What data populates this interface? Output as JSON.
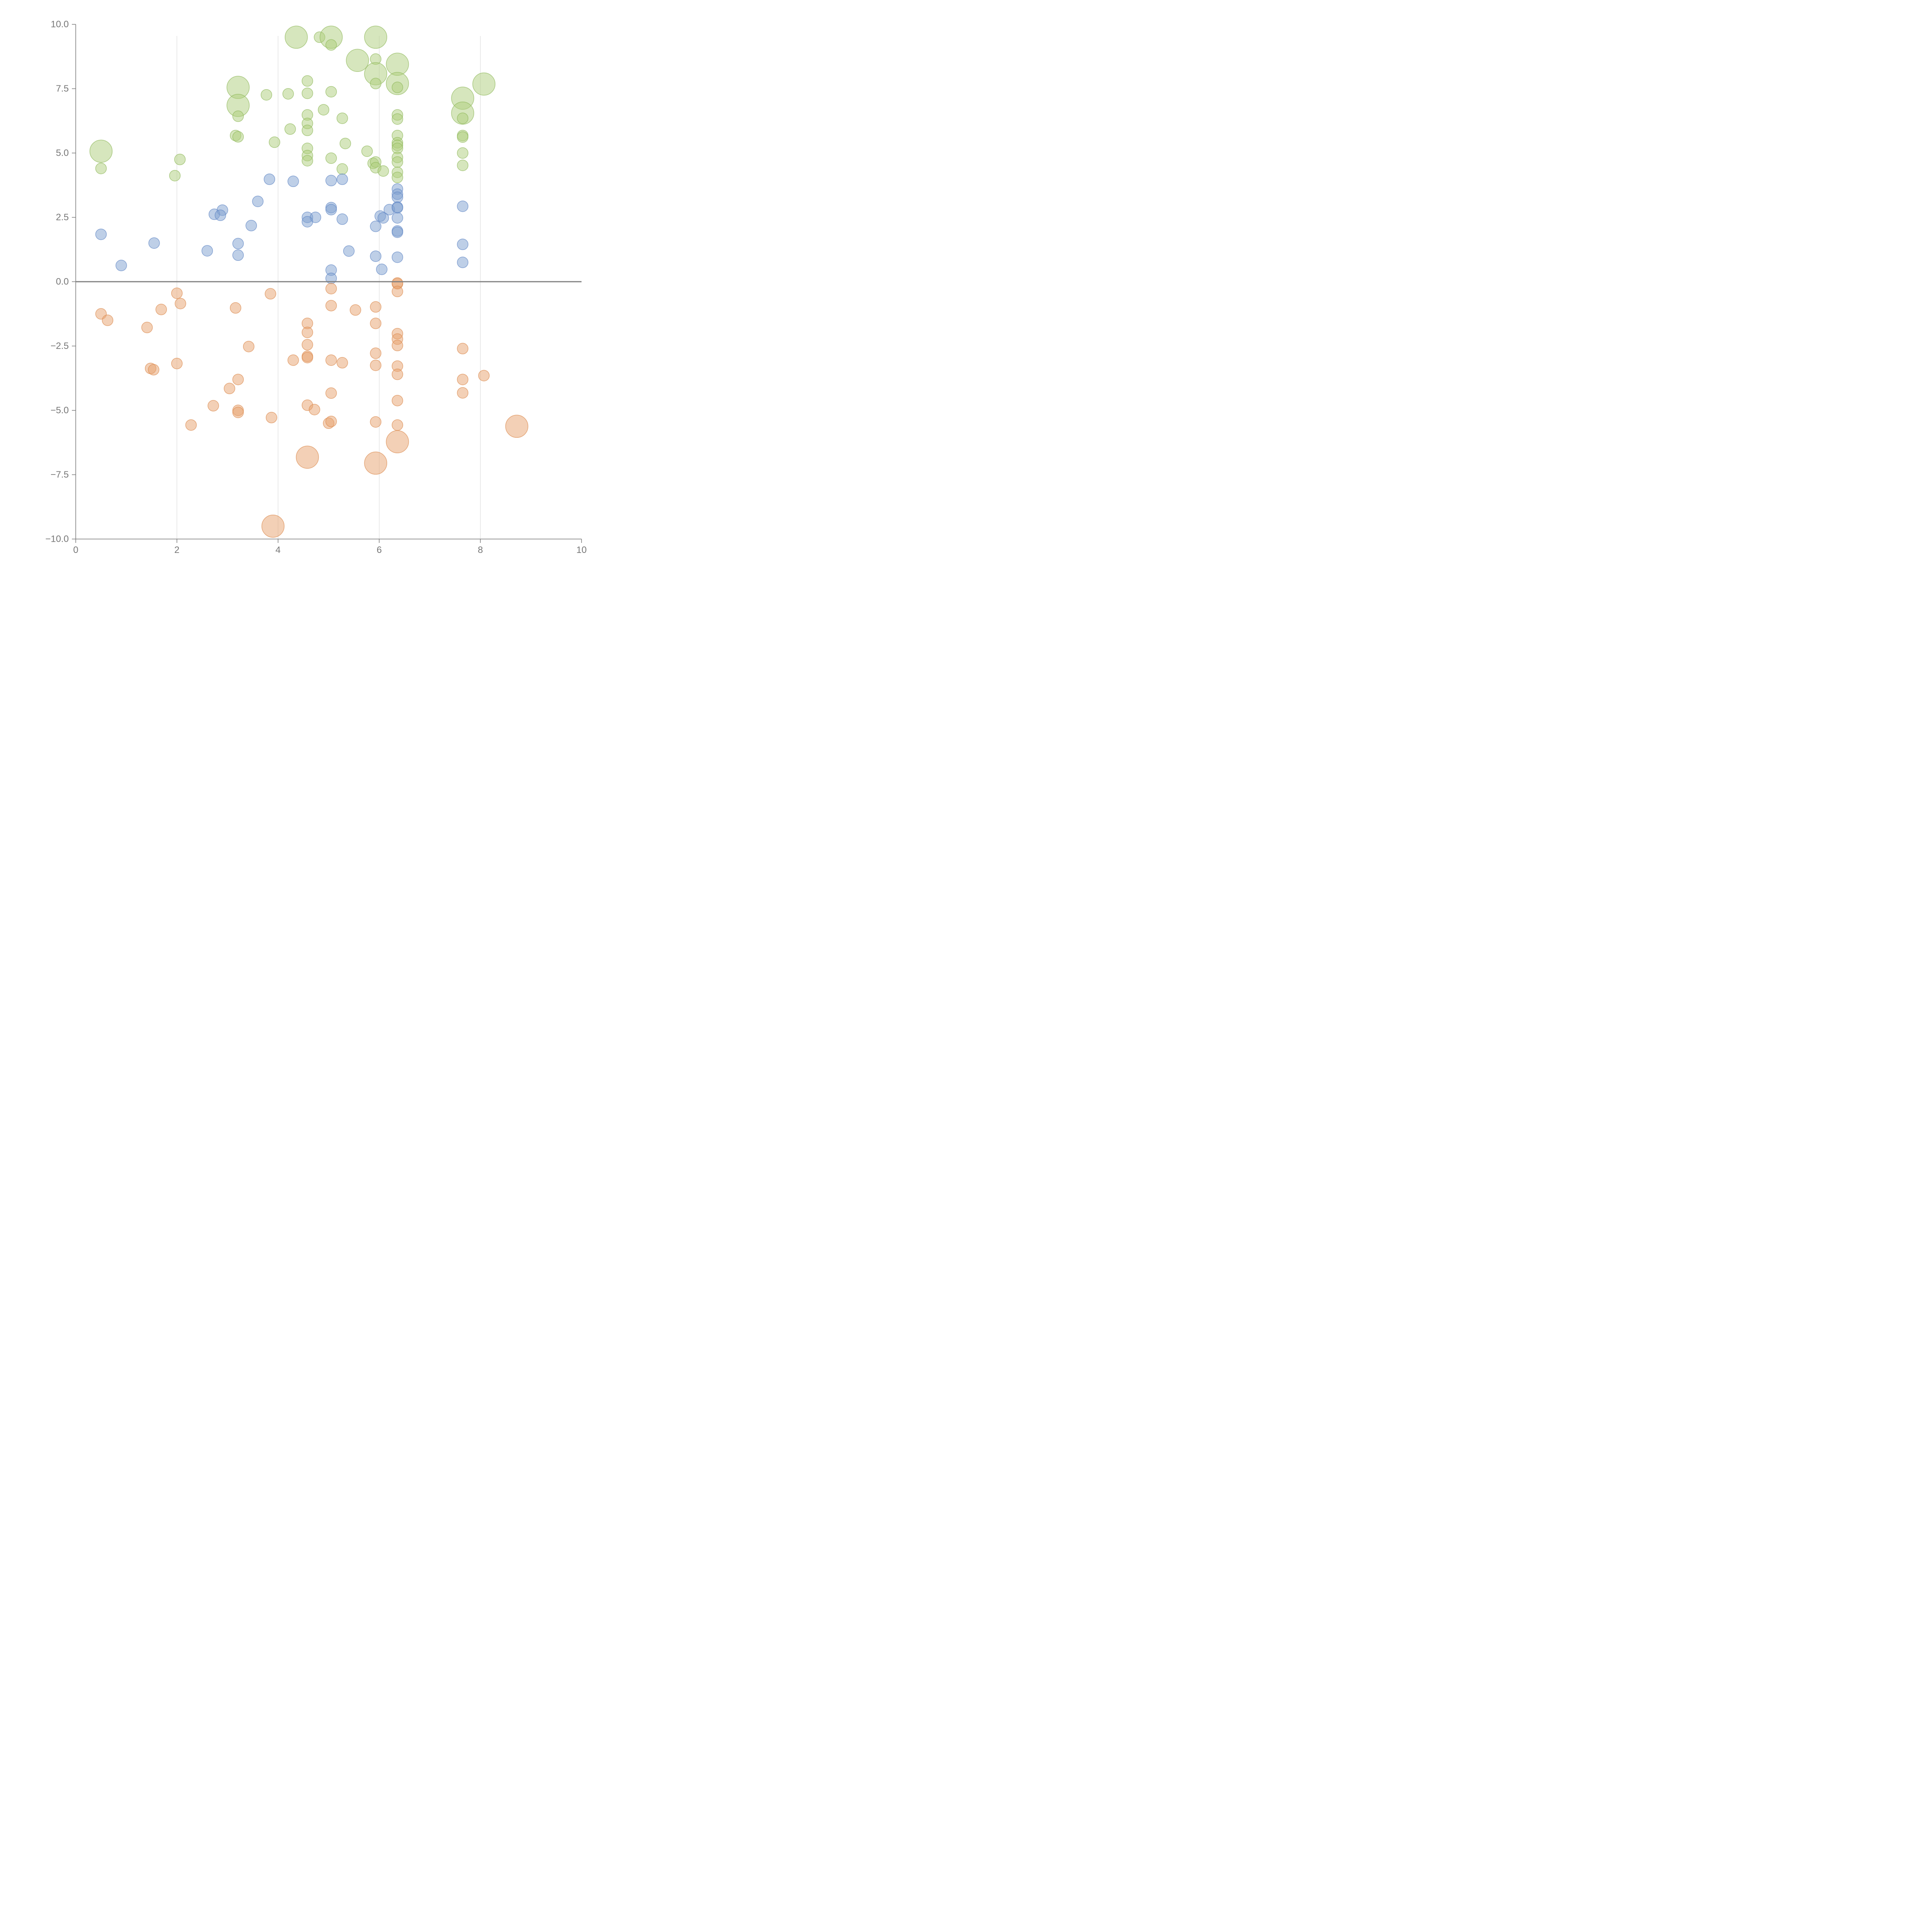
{
  "chart_data": {
    "type": "scatter",
    "title": "",
    "xlabel": "",
    "ylabel": "",
    "xlim": [
      0,
      10
    ],
    "ylim": [
      -10,
      10
    ],
    "x_ticks": [
      0,
      2,
      4,
      6,
      8,
      10
    ],
    "x_tick_labels": [
      "0",
      "2",
      "4",
      "6",
      "8",
      "10"
    ],
    "y_ticks": [
      10,
      7.5,
      5,
      2.5,
      0,
      -2.5,
      -5,
      -7.5,
      -10
    ],
    "y_tick_labels": [
      "10.0",
      "7.5",
      "5.0",
      "2.5",
      "0.0",
      "−2.5",
      "−5.0",
      "−7.5",
      "−10.0"
    ],
    "vertical_gridlines_at": [
      2,
      4,
      6,
      8
    ],
    "baseline_y": 0,
    "colors": {
      "green_fill": "#aecd7c",
      "green_stroke": "#8fb85a",
      "blue_fill": "#7d9fd0",
      "blue_stroke": "#5f86c4",
      "orange_fill": "#e8a26e",
      "orange_stroke": "#dc8a4e",
      "axis": "#777777",
      "grid": "#d6d6d6",
      "baseline": "#7f7f7f"
    },
    "series": [
      {
        "name": "green",
        "color_key": "green",
        "points": [
          [
            4.36,
            9.5,
            3
          ],
          [
            4.82,
            9.5,
            1
          ],
          [
            5.05,
            9.5,
            3
          ],
          [
            5.05,
            9.2,
            1
          ],
          [
            5.93,
            9.5,
            3
          ],
          [
            5.57,
            8.6,
            3
          ],
          [
            5.93,
            8.65,
            1
          ],
          [
            6.36,
            8.45,
            3
          ],
          [
            5.93,
            8.08,
            3
          ],
          [
            5.93,
            7.7,
            1
          ],
          [
            6.36,
            7.7,
            3
          ],
          [
            6.36,
            7.55,
            1
          ],
          [
            8.07,
            7.68,
            3
          ],
          [
            7.65,
            7.13,
            3
          ],
          [
            4.58,
            7.8,
            1
          ],
          [
            4.58,
            7.32,
            1
          ],
          [
            5.05,
            7.38,
            1
          ],
          [
            4.2,
            7.3,
            1
          ],
          [
            3.77,
            7.26,
            1
          ],
          [
            3.21,
            7.55,
            3
          ],
          [
            3.21,
            6.85,
            3
          ],
          [
            3.21,
            6.43,
            1
          ],
          [
            4.9,
            6.68,
            1
          ],
          [
            4.58,
            6.48,
            1
          ],
          [
            4.58,
            6.15,
            1
          ],
          [
            4.58,
            5.88,
            1
          ],
          [
            4.24,
            5.93,
            1
          ],
          [
            5.27,
            6.35,
            1
          ],
          [
            6.36,
            6.48,
            1
          ],
          [
            6.36,
            6.32,
            1
          ],
          [
            7.65,
            6.55,
            3
          ],
          [
            7.65,
            6.35,
            1
          ],
          [
            3.16,
            5.68,
            1
          ],
          [
            3.21,
            5.63,
            1
          ],
          [
            3.93,
            5.42,
            1
          ],
          [
            6.36,
            5.68,
            1
          ],
          [
            6.36,
            5.4,
            1
          ],
          [
            6.36,
            5.3,
            1
          ],
          [
            6.36,
            5.18,
            1
          ],
          [
            7.65,
            5.68,
            1
          ],
          [
            7.65,
            5.62,
            1
          ],
          [
            5.33,
            5.37,
            1
          ],
          [
            4.58,
            5.18,
            1
          ],
          [
            5.76,
            5.07,
            1
          ],
          [
            0.5,
            5.07,
            3
          ],
          [
            0.5,
            4.4,
            1
          ],
          [
            2.06,
            4.75,
            1
          ],
          [
            1.96,
            4.12,
            1
          ],
          [
            4.58,
            4.9,
            1
          ],
          [
            4.58,
            4.7,
            1
          ],
          [
            5.05,
            4.8,
            1
          ],
          [
            5.88,
            4.6,
            1
          ],
          [
            5.93,
            4.65,
            1
          ],
          [
            5.93,
            4.43,
            1
          ],
          [
            6.08,
            4.3,
            1
          ],
          [
            5.27,
            4.38,
            1
          ],
          [
            6.36,
            4.83,
            1
          ],
          [
            6.36,
            4.65,
            1
          ],
          [
            6.36,
            4.25,
            1
          ],
          [
            6.36,
            4.05,
            1
          ],
          [
            7.65,
            5.0,
            1
          ],
          [
            7.65,
            4.52,
            1
          ]
        ]
      },
      {
        "name": "blue",
        "color_key": "blue",
        "points": [
          [
            3.83,
            3.98,
            1
          ],
          [
            4.3,
            3.9,
            1
          ],
          [
            5.05,
            3.93,
            1
          ],
          [
            5.27,
            3.98,
            1
          ],
          [
            3.6,
            3.12,
            1
          ],
          [
            2.9,
            2.78,
            1
          ],
          [
            2.74,
            2.62,
            1
          ],
          [
            2.86,
            2.58,
            1
          ],
          [
            3.47,
            2.18,
            1
          ],
          [
            4.58,
            2.5,
            1
          ],
          [
            4.74,
            2.5,
            1
          ],
          [
            4.58,
            2.33,
            1
          ],
          [
            5.05,
            2.88,
            1
          ],
          [
            5.05,
            2.8,
            1
          ],
          [
            5.27,
            2.43,
            1
          ],
          [
            5.93,
            2.15,
            1
          ],
          [
            6.02,
            2.55,
            1
          ],
          [
            6.08,
            2.48,
            1
          ],
          [
            6.2,
            2.8,
            1
          ],
          [
            6.36,
            3.6,
            1
          ],
          [
            6.36,
            3.4,
            1
          ],
          [
            6.36,
            3.28,
            1
          ],
          [
            6.36,
            2.9,
            1
          ],
          [
            6.36,
            2.87,
            1
          ],
          [
            6.36,
            2.48,
            1
          ],
          [
            6.36,
            1.97,
            1
          ],
          [
            6.36,
            1.92,
            1
          ],
          [
            7.65,
            2.93,
            1
          ],
          [
            0.5,
            1.84,
            1
          ],
          [
            1.55,
            1.5,
            1
          ],
          [
            0.9,
            0.63,
            1
          ],
          [
            2.6,
            1.2,
            1
          ],
          [
            3.21,
            1.48,
            1
          ],
          [
            3.21,
            1.03,
            1
          ],
          [
            5.4,
            1.19,
            1
          ],
          [
            5.93,
            0.99,
            1
          ],
          [
            6.36,
            0.95,
            1
          ],
          [
            7.65,
            1.45,
            1
          ],
          [
            7.65,
            0.75,
            1
          ],
          [
            5.05,
            0.45,
            1
          ],
          [
            5.05,
            0.13,
            1
          ],
          [
            6.05,
            0.48,
            1
          ]
        ]
      },
      {
        "name": "orange",
        "color_key": "orange",
        "points": [
          [
            6.36,
            -0.08,
            1
          ],
          [
            6.36,
            -0.05,
            1
          ],
          [
            6.36,
            -0.38,
            1
          ],
          [
            5.05,
            -0.27,
            1
          ],
          [
            3.85,
            -0.47,
            1
          ],
          [
            2.0,
            -0.45,
            1
          ],
          [
            2.07,
            -0.85,
            1
          ],
          [
            1.69,
            -1.08,
            1
          ],
          [
            0.5,
            -1.25,
            1
          ],
          [
            0.63,
            -1.5,
            1
          ],
          [
            1.41,
            -1.78,
            1
          ],
          [
            3.16,
            -1.02,
            1
          ],
          [
            5.05,
            -0.93,
            1
          ],
          [
            5.53,
            -1.1,
            1
          ],
          [
            5.93,
            -0.98,
            1
          ],
          [
            4.58,
            -1.62,
            1
          ],
          [
            4.58,
            -1.97,
            1
          ],
          [
            5.93,
            -1.62,
            1
          ],
          [
            6.36,
            -2.02,
            1
          ],
          [
            6.36,
            -2.23,
            1
          ],
          [
            6.36,
            -2.48,
            1
          ],
          [
            4.58,
            -2.45,
            1
          ],
          [
            3.42,
            -2.52,
            1
          ],
          [
            4.58,
            -2.9,
            1
          ],
          [
            4.58,
            -2.95,
            1
          ],
          [
            4.3,
            -3.05,
            1
          ],
          [
            5.05,
            -3.05,
            1
          ],
          [
            5.27,
            -3.15,
            1
          ],
          [
            5.93,
            -2.78,
            1
          ],
          [
            5.93,
            -3.25,
            1
          ],
          [
            6.36,
            -3.28,
            1
          ],
          [
            6.36,
            -3.6,
            1
          ],
          [
            7.65,
            -2.6,
            1
          ],
          [
            7.65,
            -3.8,
            1
          ],
          [
            7.65,
            -4.32,
            1
          ],
          [
            8.07,
            -3.65,
            1
          ],
          [
            2.0,
            -3.18,
            1
          ],
          [
            1.48,
            -3.37,
            1
          ],
          [
            1.54,
            -3.42,
            1
          ],
          [
            3.21,
            -3.8,
            1
          ],
          [
            3.04,
            -4.15,
            1
          ],
          [
            5.05,
            -4.33,
            1
          ],
          [
            6.36,
            -4.62,
            1
          ],
          [
            2.72,
            -4.82,
            1
          ],
          [
            3.21,
            -5.0,
            1
          ],
          [
            3.21,
            -5.08,
            1
          ],
          [
            2.28,
            -5.57,
            1
          ],
          [
            3.87,
            -5.28,
            1
          ],
          [
            4.58,
            -4.8,
            1
          ],
          [
            4.72,
            -4.97,
            1
          ],
          [
            5.0,
            -5.5,
            1
          ],
          [
            5.05,
            -5.43,
            1
          ],
          [
            5.93,
            -5.45,
            1
          ],
          [
            6.36,
            -5.57,
            1
          ],
          [
            8.72,
            -5.62,
            3
          ],
          [
            6.36,
            -6.22,
            3
          ],
          [
            4.58,
            -6.82,
            3
          ],
          [
            5.93,
            -7.05,
            3
          ],
          [
            3.9,
            -9.5,
            3
          ]
        ]
      }
    ]
  }
}
